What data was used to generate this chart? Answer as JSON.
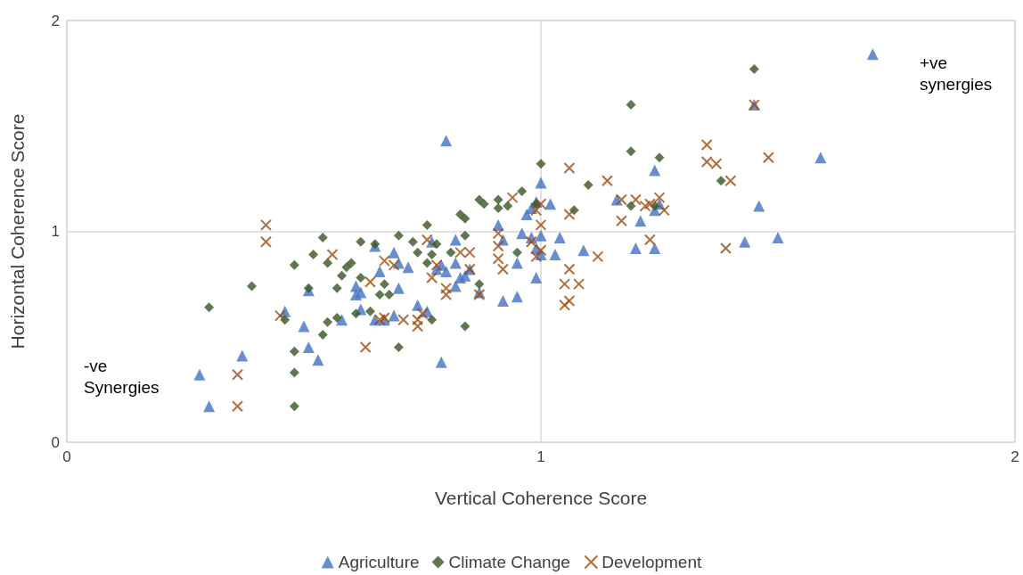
{
  "chart_data": {
    "type": "scatter",
    "xlabel": "Vertical Coherence Score",
    "ylabel": "Horizontal Coherence Score",
    "xlim": [
      0,
      2
    ],
    "ylim": [
      0,
      2
    ],
    "xticks": [
      0,
      1,
      2
    ],
    "yticks": [
      0,
      1,
      2
    ],
    "grid": true,
    "legend": "bottom",
    "annotations": [
      "+ve synergies",
      "-ve Synergies"
    ],
    "series": [
      {
        "name": "Agriculture",
        "color": "#4472c4",
        "marker": "triangle",
        "x": [
          0.28,
          0.3,
          0.37,
          0.46,
          0.5,
          0.51,
          0.51,
          0.53,
          0.58,
          0.61,
          0.61,
          0.62,
          0.62,
          0.65,
          0.65,
          0.66,
          0.67,
          0.69,
          0.69,
          0.7,
          0.7,
          0.72,
          0.74,
          0.76,
          0.79,
          0.8,
          0.77,
          0.78,
          0.79,
          0.8,
          0.82,
          0.82,
          0.82,
          0.83,
          0.84,
          0.85,
          0.87,
          0.91,
          0.92,
          0.92,
          0.95,
          0.95,
          0.96,
          0.97,
          0.98,
          0.98,
          0.99,
          0.99,
          1.0,
          1.02,
          1.03,
          1.04,
          1.0,
          1.0,
          0.99,
          1.09,
          1.16,
          1.2,
          1.21,
          1.24,
          1.24,
          1.24,
          1.25,
          1.45,
          1.43,
          1.46,
          1.5,
          1.59,
          1.7
        ],
        "values": [
          0.32,
          0.17,
          0.41,
          0.62,
          0.55,
          0.72,
          0.45,
          0.39,
          0.58,
          0.74,
          0.7,
          0.71,
          0.63,
          0.58,
          0.93,
          0.81,
          0.58,
          0.9,
          0.6,
          0.73,
          0.85,
          0.83,
          0.65,
          0.62,
          0.38,
          1.43,
          0.95,
          0.82,
          0.84,
          0.81,
          0.96,
          0.85,
          0.74,
          0.78,
          0.79,
          0.82,
          0.71,
          1.03,
          0.96,
          0.67,
          0.69,
          0.85,
          0.99,
          1.08,
          1.11,
          0.97,
          1.14,
          0.78,
          1.23,
          1.13,
          0.89,
          0.97,
          0.89,
          0.98,
          0.92,
          0.91,
          1.15,
          0.92,
          1.05,
          1.29,
          1.1,
          0.92,
          1.13,
          1.6,
          0.95,
          1.12,
          0.97,
          1.35,
          1.84
        ]
      },
      {
        "name": "Climate Change",
        "color": "#375623",
        "marker": "diamond",
        "x": [
          0.3,
          0.39,
          0.46,
          0.48,
          0.48,
          0.48,
          0.48,
          0.51,
          0.52,
          0.54,
          0.54,
          0.55,
          0.55,
          0.57,
          0.57,
          0.58,
          0.59,
          0.6,
          0.61,
          0.62,
          0.62,
          0.64,
          0.65,
          0.66,
          0.67,
          0.68,
          0.7,
          0.7,
          0.73,
          0.74,
          0.76,
          0.77,
          0.78,
          0.77,
          0.76,
          0.81,
          0.83,
          0.84,
          0.84,
          0.84,
          0.87,
          0.87,
          0.88,
          0.91,
          0.91,
          0.93,
          0.96,
          0.95,
          1.0,
          0.99,
          1.07,
          1.19,
          1.1,
          1.19,
          1.19,
          1.25,
          1.24,
          1.38,
          1.45
        ],
        "values": [
          0.64,
          0.74,
          0.58,
          0.84,
          0.43,
          0.33,
          0.17,
          0.73,
          0.89,
          0.97,
          0.51,
          0.57,
          0.85,
          0.59,
          0.73,
          0.79,
          0.83,
          0.85,
          0.61,
          0.95,
          0.78,
          0.62,
          0.94,
          0.7,
          0.75,
          0.7,
          0.98,
          0.45,
          0.95,
          0.9,
          1.03,
          0.89,
          0.94,
          0.58,
          0.85,
          0.9,
          1.08,
          1.06,
          0.98,
          0.55,
          0.75,
          1.15,
          1.13,
          1.11,
          1.15,
          1.12,
          1.19,
          0.9,
          1.32,
          1.13,
          1.1,
          1.6,
          1.22,
          1.38,
          1.12,
          1.35,
          1.12,
          1.24,
          1.77
        ]
      },
      {
        "name": "Development",
        "color": "#9e480e",
        "marker": "cross",
        "x": [
          0.42,
          0.42,
          0.36,
          0.36,
          0.45,
          0.56,
          0.63,
          0.64,
          0.66,
          0.67,
          0.67,
          0.69,
          0.71,
          0.74,
          0.74,
          0.75,
          0.76,
          0.77,
          0.78,
          0.8,
          0.8,
          0.83,
          0.85,
          0.85,
          0.87,
          0.91,
          0.91,
          0.91,
          0.92,
          0.94,
          0.99,
          1.0,
          1.0,
          0.98,
          1.0,
          0.99,
          1.06,
          1.06,
          1.06,
          1.06,
          1.05,
          1.08,
          1.05,
          1.12,
          1.14,
          1.17,
          1.17,
          1.2,
          1.22,
          1.23,
          1.25,
          1.26,
          1.23,
          1.35,
          1.35,
          1.37,
          1.4,
          1.39,
          1.48,
          1.45
        ],
        "values": [
          1.03,
          0.95,
          0.32,
          0.17,
          0.6,
          0.89,
          0.45,
          0.76,
          0.58,
          0.86,
          0.59,
          0.84,
          0.58,
          0.58,
          0.55,
          0.61,
          0.96,
          0.78,
          0.84,
          0.7,
          0.73,
          0.9,
          0.82,
          0.9,
          0.7,
          0.87,
          0.99,
          0.93,
          0.82,
          1.16,
          1.1,
          1.13,
          1.03,
          0.95,
          0.91,
          0.88,
          1.3,
          1.08,
          0.82,
          0.67,
          0.75,
          0.75,
          0.65,
          0.88,
          1.24,
          1.15,
          1.05,
          1.15,
          1.12,
          1.13,
          1.16,
          1.1,
          0.96,
          1.41,
          1.33,
          1.32,
          1.24,
          0.92,
          1.35,
          1.6
        ]
      }
    ]
  }
}
